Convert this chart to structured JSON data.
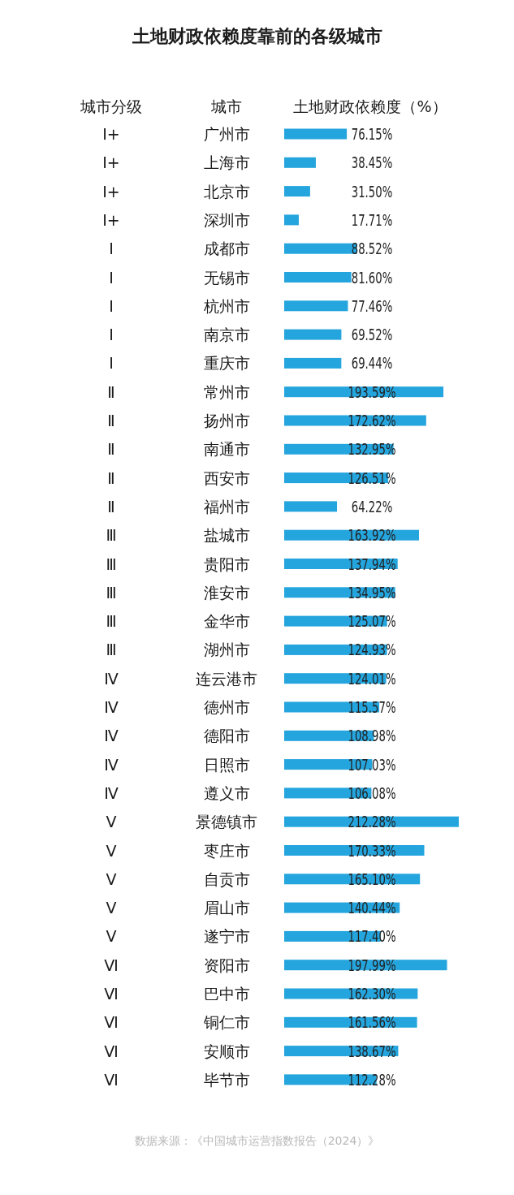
{
  "chart_data": {
    "type": "bar",
    "orientation": "horizontal",
    "title": "土地财政依赖度靠前的各级城市",
    "ylabel": "城市",
    "xlabel": "土地财政依赖度（%）",
    "color": "#25a5de",
    "categories": [
      "广州市",
      "上海市",
      "北京市",
      "深圳市",
      "成都市",
      "无锡市",
      "杭州市",
      "南京市",
      "重庆市",
      "常州市",
      "扬州市",
      "南通市",
      "西安市",
      "福州市",
      "盐城市",
      "贵阳市",
      "淮安市",
      "金华市",
      "湖州市",
      "连云港市",
      "德州市",
      "德阳市",
      "日照市",
      "遵义市",
      "景德镇市",
      "枣庄市",
      "自贡市",
      "眉山市",
      "遂宁市",
      "资阳市",
      "巴中市",
      "铜仁市",
      "安顺市",
      "毕节市"
    ],
    "values": [
      76.15,
      38.45,
      31.5,
      17.71,
      88.52,
      81.6,
      77.46,
      69.52,
      69.44,
      193.59,
      172.62,
      132.95,
      126.51,
      64.22,
      163.92,
      137.94,
      134.95,
      125.07,
      124.93,
      124.01,
      115.57,
      108.98,
      107.03,
      106.08,
      212.28,
      170.33,
      165.1,
      140.44,
      117.4,
      197.99,
      162.3,
      161.56,
      138.67,
      112.28
    ],
    "value_labels": [
      "76.15%",
      "38.45%",
      "31.50%",
      "17.71%",
      "88.52%",
      "81.60%",
      "77.46%",
      "69.52%",
      "69.44%",
      "193.59%",
      "172.62%",
      "132.95%",
      "126.51%",
      "64.22%",
      "163.92%",
      "137.94%",
      "134.95%",
      "125.07%",
      "124.93%",
      "124.01%",
      "115.57%",
      "108.98%",
      "107.03%",
      "106.08%",
      "212.28%",
      "170.33%",
      "165.10%",
      "140.44%",
      "117.40%",
      "197.99%",
      "162.30%",
      "161.56%",
      "138.67%",
      "112.28%"
    ],
    "annotations": [
      "城市分级",
      "Ⅰ+",
      "Ⅰ+",
      "Ⅰ+",
      "Ⅰ+",
      "Ⅰ",
      "Ⅰ",
      "Ⅰ",
      "Ⅰ",
      "Ⅰ",
      "Ⅱ",
      "Ⅱ",
      "Ⅱ",
      "Ⅱ",
      "Ⅱ",
      "Ⅲ",
      "Ⅲ",
      "Ⅲ",
      "Ⅲ",
      "Ⅲ",
      "Ⅳ",
      "Ⅳ",
      "Ⅳ",
      "Ⅳ",
      "Ⅳ",
      "Ⅴ",
      "Ⅴ",
      "Ⅴ",
      "Ⅴ",
      "Ⅴ",
      "Ⅵ",
      "Ⅵ",
      "Ⅵ",
      "Ⅵ",
      "Ⅵ",
      "数据来源：《中国城市运营指数报告（2024）》"
    ]
  }
}
